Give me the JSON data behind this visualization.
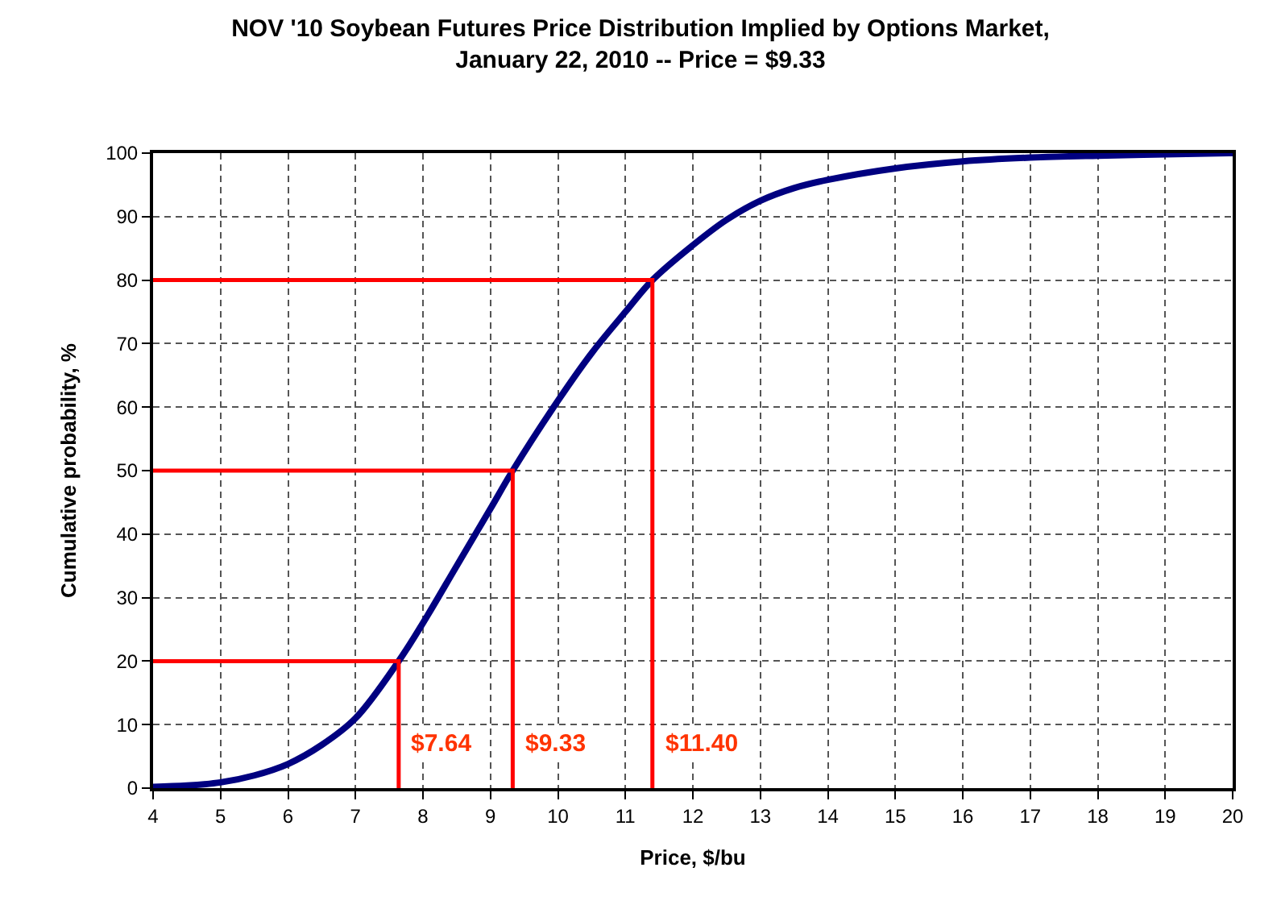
{
  "chart_data": {
    "type": "line",
    "title": "NOV '10 Soybean Futures Price Distribution Implied by Options Market,\nJanuary 22, 2010 -- Price = $9.33",
    "xlabel": "Price, $/bu",
    "ylabel": "Cumulative probability, %",
    "series": [
      {
        "color": "#000080",
        "x": [
          4,
          4.5,
          5,
          5.5,
          6,
          6.5,
          7,
          7.64,
          8,
          8.5,
          9,
          9.33,
          10,
          10.5,
          11,
          11.4,
          12,
          12.5,
          13,
          13.5,
          14,
          15,
          16,
          17,
          18,
          19,
          20
        ],
        "values": [
          0.2,
          0.4,
          0.9,
          2,
          3.8,
          6.8,
          11,
          20,
          26,
          35,
          44,
          50,
          61,
          68.5,
          75,
          80,
          85.5,
          89.5,
          92.5,
          94.5,
          95.8,
          97.6,
          98.7,
          99.3,
          99.6,
          99.8,
          100
        ]
      },
      {
        "color": "#ff0000",
        "x": [
          4,
          7.64,
          7.64,
          null,
          4,
          9.33,
          9.33,
          null,
          4,
          11.4,
          11.4
        ],
        "values": [
          20,
          20,
          0,
          null,
          50,
          50,
          0,
          null,
          80,
          80,
          0
        ]
      }
    ],
    "xlim": [
      4,
      20
    ],
    "xticks": [
      4,
      5,
      6,
      7,
      8,
      9,
      10,
      11,
      12,
      13,
      14,
      15,
      16,
      17,
      18,
      19,
      20
    ],
    "ylim": [
      0,
      100
    ],
    "yticks": [
      0,
      10,
      20,
      30,
      40,
      50,
      60,
      70,
      80,
      90,
      100
    ],
    "annotations": [
      {
        "text": "$7.64",
        "x": 7.64,
        "y": 7
      },
      {
        "text": "$9.33",
        "x": 9.33,
        "y": 7
      },
      {
        "text": "$11.40",
        "x": 11.4,
        "y": 7
      }
    ],
    "grid": true,
    "marker": "none",
    "line_style": "solid"
  }
}
